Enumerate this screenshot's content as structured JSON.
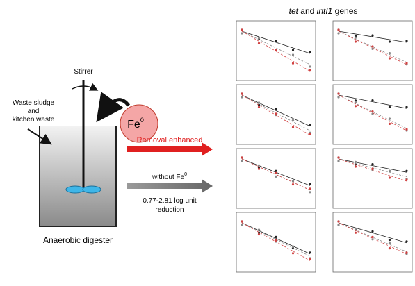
{
  "diagram": {
    "stirrer": "Stirrer",
    "feed": [
      "Waste sludge",
      "and",
      "kitchen waste"
    ],
    "reactor": "Anaerobic digester",
    "iron": {
      "symbol": "Fe",
      "superscript": "0"
    },
    "enhanced": "Removal enhanced",
    "without": {
      "text": "without Fe",
      "superscript": "0"
    },
    "reduction": [
      "0.77-2.81 log unit",
      "reduction"
    ],
    "panels_title": {
      "italic_1": "tet",
      "middle": " and ",
      "italic_2": "intI1",
      "end": " genes"
    }
  }
}
